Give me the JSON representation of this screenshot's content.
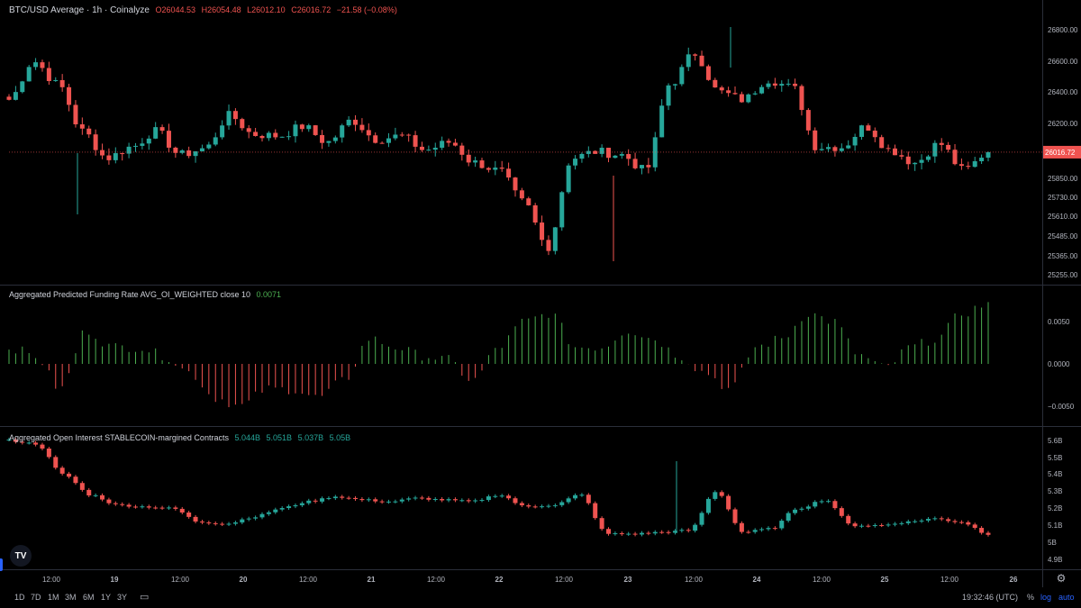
{
  "main_legend": {
    "title": "BTC/USD Average · 1h · Coinalyze",
    "open": "O26044.53",
    "high": "H26054.48",
    "low": "L26012.10",
    "close": "C26016.72",
    "change": "−21.58 (−0.08%)"
  },
  "funding_legend": {
    "title": "Aggregated Predicted Funding Rate AVG_OI_WEIGHTED close 10",
    "value": "0.0071"
  },
  "oi_legend": {
    "title": "Aggregated Open Interest STABLECOIN-margined Contracts",
    "values": [
      "5.044B",
      "5.051B",
      "5.037B",
      "5.05B"
    ]
  },
  "price_axis": {
    "ticks": [
      "26800.00",
      "26600.00",
      "26400.00",
      "26200.00",
      "25850.00",
      "25730.00",
      "25610.00",
      "25485.00",
      "25365.00",
      "25255.00"
    ],
    "last_price": "26016.72"
  },
  "funding_axis": {
    "ticks": [
      "0.0050",
      "0.0000",
      "−0.0050"
    ]
  },
  "oi_axis": {
    "ticks": [
      "5.6B",
      "5.5B",
      "5.4B",
      "5.3B",
      "5.2B",
      "5.1B",
      "5B",
      "4.9B"
    ]
  },
  "time_axis": {
    "labels": [
      "12:00",
      "19",
      "12:00",
      "20",
      "12:00",
      "21",
      "12:00",
      "22",
      "12:00",
      "23",
      "12:00",
      "24",
      "12:00",
      "25",
      "12:00",
      "26"
    ]
  },
  "bottom_bar": {
    "timeframes": [
      "1D",
      "7D",
      "1M",
      "3M",
      "6M",
      "1Y",
      "3Y"
    ],
    "clock": "19:32:46 (UTC)",
    "percent": "%",
    "log": "log",
    "auto": "auto"
  },
  "logo_text": "TV",
  "colors": {
    "up": "#26a69a",
    "down": "#ef5350",
    "funding_pos": "#4caf50",
    "funding_neg": "#ef5350",
    "accent": "#2962ff"
  },
  "chart_data": [
    {
      "type": "candlestick",
      "title": "BTC/USD Average · 1h · Coinalyze",
      "keypoints_close": [
        26350,
        26600,
        26450,
        26150,
        25980,
        26050,
        26150,
        26000,
        26040,
        26250,
        26130,
        26120,
        26180,
        26080,
        26220,
        26100,
        26120,
        26030,
        26080,
        25950,
        25900,
        25700,
        25420,
        25980,
        26020,
        26000,
        25900,
        26450,
        26650,
        26400,
        26350,
        26480,
        26430,
        26050,
        26050,
        26180,
        26030,
        25950,
        26070,
        25900,
        26016.72
      ],
      "ylim": [
        25200,
        26850
      ]
    },
    {
      "type": "bar",
      "title": "Aggregated Predicted Funding Rate AVG_OI_WEIGHTED close 10",
      "keypoints": [
        0.002,
        0.001,
        -0.003,
        0.004,
        0.002,
        0.002,
        0.001,
        -0.001,
        -0.004,
        -0.005,
        -0.003,
        -0.003,
        -0.004,
        -0.002,
        0.003,
        0.002,
        0.001,
        0.0005,
        -0.002,
        0.002,
        0.005,
        0.006,
        0.002,
        0.002,
        0.004,
        0.003,
        0.001,
        -0.001,
        -0.003,
        0.002,
        0.003,
        0.006,
        0.005,
        0.001,
        -0.0005,
        0.002,
        0.003,
        0.006,
        0.0071
      ],
      "ylim": [
        -0.0065,
        0.0085
      ]
    },
    {
      "type": "candlestick",
      "title": "Aggregated Open Interest STABLECOIN-margined Contracts",
      "keypoints_close": [
        5.6,
        5.58,
        5.4,
        5.28,
        5.22,
        5.21,
        5.2,
        5.12,
        5.11,
        5.15,
        5.2,
        5.24,
        5.27,
        5.25,
        5.24,
        5.26,
        5.25,
        5.24,
        5.28,
        5.21,
        5.22,
        5.28,
        5.05,
        5.05,
        5.06,
        5.07,
        5.3,
        5.06,
        5.08,
        5.2,
        5.25,
        5.1,
        5.1,
        5.12,
        5.14,
        5.12,
        5.05
      ],
      "ylim": [
        4.85,
        5.65
      ]
    }
  ]
}
